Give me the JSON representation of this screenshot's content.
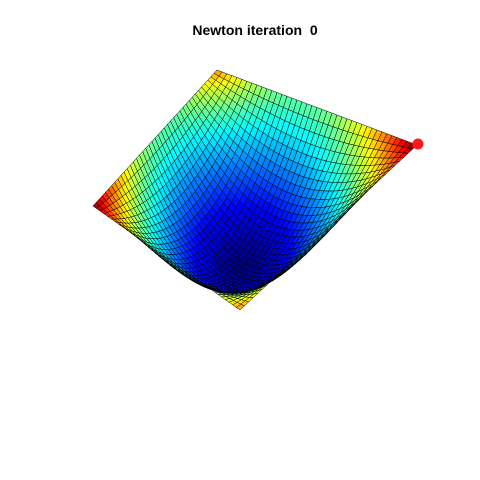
{
  "figure": {
    "title": "Newton iteration  0",
    "colormap": "jet",
    "edge_color": "#000000",
    "marker_color": "#ff1a1a"
  }
}
